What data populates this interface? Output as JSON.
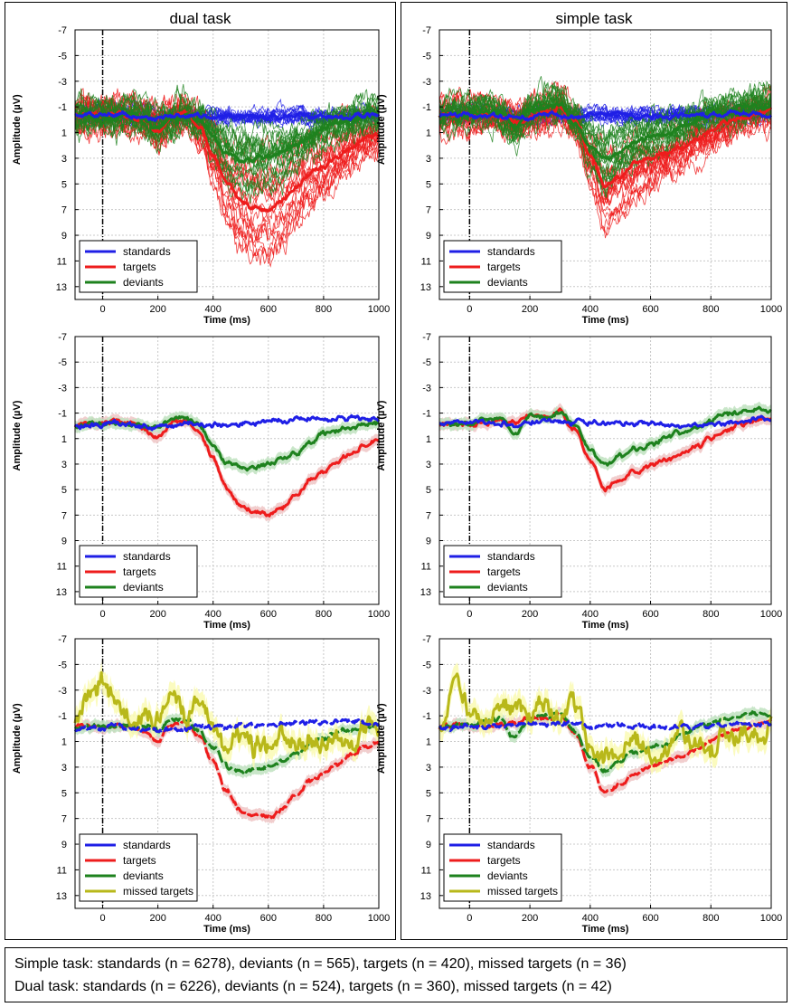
{
  "column_titles": [
    "dual task",
    "simple task"
  ],
  "caption": {
    "line1": "Simple task: standards (n = 6278), deviants (n = 565), targets (n = 420), missed targets (n = 36)",
    "line2": "Dual task: standards (n = 6226), deviants (n = 524), targets (n = 360), missed targets (n = 42)"
  },
  "colors": {
    "standards": "#1f1fe6",
    "targets": "#ee1c1c",
    "deviants": "#1e821e",
    "missed": "#b8b81a",
    "target_band": "#efc6c6",
    "deviant_band": "#bfe2bf",
    "missed_band": "#fafab4",
    "grid": "#c8c8c8"
  },
  "chart_data": [
    {
      "id": "dual-individual",
      "column": "dual task",
      "row": 1,
      "type": "line",
      "xlabel": "Time (ms)",
      "ylabel": "Amplitude (µV)",
      "xlim": [
        -100,
        1000
      ],
      "ylim": [
        -7,
        14
      ],
      "y_reversed": true,
      "xticks": [
        0,
        200,
        400,
        600,
        800,
        1000
      ],
      "yticks": [
        -7,
        -5,
        -3,
        -1,
        1,
        3,
        5,
        7,
        9,
        11,
        13
      ],
      "x": [
        -100,
        -50,
        0,
        50,
        100,
        150,
        200,
        250,
        300,
        350,
        400,
        450,
        500,
        550,
        600,
        650,
        700,
        750,
        800,
        850,
        900,
        950,
        1000
      ],
      "series": [
        {
          "name": "standards",
          "values": [
            -0.4,
            -0.6,
            -0.5,
            -0.5,
            -0.4,
            -0.3,
            -0.2,
            -0.2,
            -0.3,
            -0.3,
            -0.3,
            -0.3,
            -0.3,
            -0.3,
            -0.3,
            -0.3,
            -0.3,
            -0.3,
            -0.2,
            -0.3,
            -0.3,
            -0.3,
            -0.4
          ]
        },
        {
          "name": "targets",
          "values": [
            -0.3,
            -0.4,
            -0.2,
            -0.4,
            -0.3,
            0.0,
            0.8,
            -0.3,
            -0.4,
            0.6,
            2.8,
            5.0,
            6.3,
            6.9,
            6.9,
            6.3,
            5.3,
            4.3,
            3.6,
            2.9,
            2.1,
            1.4,
            1.2
          ]
        },
        {
          "name": "deviants",
          "values": [
            -0.3,
            -0.3,
            -0.4,
            -0.2,
            -0.4,
            -0.1,
            0.6,
            -0.1,
            -0.5,
            0.1,
            1.4,
            2.7,
            3.2,
            3.0,
            2.9,
            2.5,
            2.0,
            1.3,
            0.6,
            0.2,
            0.0,
            -0.2,
            -0.3
          ]
        }
      ],
      "legend": [
        "standards",
        "targets",
        "deviants"
      ],
      "legend_position": "lower-left"
    },
    {
      "id": "simple-individual",
      "column": "simple task",
      "row": 1,
      "type": "line",
      "xlabel": "Time (ms)",
      "ylabel": "Amplitude (µV)",
      "xlim": [
        -100,
        1000
      ],
      "ylim": [
        -7,
        14
      ],
      "y_reversed": true,
      "xticks": [
        0,
        200,
        400,
        600,
        800,
        1000
      ],
      "yticks": [
        -7,
        -5,
        -3,
        -1,
        1,
        3,
        5,
        7,
        9,
        11,
        13
      ],
      "x": [
        -100,
        -50,
        0,
        50,
        100,
        150,
        200,
        250,
        300,
        350,
        400,
        450,
        500,
        550,
        600,
        650,
        700,
        750,
        800,
        850,
        900,
        950,
        1000
      ],
      "series": [
        {
          "name": "standards",
          "values": [
            -0.3,
            -0.4,
            -0.4,
            -0.3,
            -0.3,
            -0.2,
            -0.2,
            -0.4,
            -0.3,
            -0.3,
            -0.3,
            -0.3,
            -0.3,
            -0.3,
            -0.3,
            -0.3,
            -0.4,
            -0.4,
            -0.4,
            -0.5,
            -0.5,
            -0.5,
            -0.4
          ]
        },
        {
          "name": "targets",
          "values": [
            -0.3,
            -0.4,
            -0.3,
            -0.4,
            -0.2,
            0.1,
            -0.2,
            -0.6,
            -1.0,
            0.2,
            2.8,
            5.1,
            4.4,
            3.4,
            3.1,
            2.6,
            2.1,
            1.5,
            0.9,
            0.3,
            -0.2,
            -0.5,
            -0.8
          ]
        },
        {
          "name": "deviants",
          "values": [
            -0.3,
            -0.4,
            -0.5,
            -0.6,
            -0.4,
            0.6,
            -0.8,
            -0.9,
            -1.1,
            0.3,
            2.0,
            3.1,
            2.3,
            1.7,
            1.4,
            1.2,
            0.6,
            0.2,
            -0.3,
            -0.6,
            -0.9,
            -1.1,
            -1.2
          ]
        }
      ],
      "legend": [
        "standards",
        "targets",
        "deviants"
      ],
      "legend_position": "lower-left"
    },
    {
      "id": "dual-average",
      "column": "dual task",
      "row": 2,
      "type": "line",
      "xlabel": "Time (ms)",
      "ylabel": "Amplitude (µV)",
      "xlim": [
        -100,
        1000
      ],
      "ylim": [
        -7,
        14
      ],
      "y_reversed": true,
      "xticks": [
        0,
        200,
        400,
        600,
        800,
        1000
      ],
      "yticks": [
        -7,
        -5,
        -3,
        -1,
        1,
        3,
        5,
        7,
        9,
        11,
        13
      ],
      "x": [
        -100,
        -50,
        0,
        50,
        100,
        150,
        200,
        250,
        300,
        350,
        400,
        450,
        500,
        550,
        600,
        650,
        700,
        750,
        800,
        850,
        900,
        950,
        1000
      ],
      "series": [
        {
          "name": "standards",
          "values": [
            0.0,
            -0.2,
            -0.1,
            -0.1,
            0.0,
            0.1,
            0.1,
            0.0,
            -0.1,
            -0.2,
            -0.2,
            -0.2,
            -0.3,
            -0.3,
            -0.3,
            -0.4,
            -0.5,
            -0.5,
            -0.6,
            -0.6,
            -0.6,
            -0.5,
            -0.5
          ]
        },
        {
          "name": "targets",
          "values": [
            -0.1,
            -0.3,
            -0.2,
            -0.3,
            -0.1,
            0.4,
            1.0,
            -0.2,
            -0.4,
            0.5,
            2.6,
            4.9,
            6.3,
            6.8,
            6.9,
            6.3,
            5.3,
            4.2,
            3.5,
            2.8,
            2.1,
            1.5,
            1.2
          ]
        },
        {
          "name": "deviants",
          "values": [
            -0.1,
            -0.2,
            -0.2,
            -0.2,
            -0.2,
            -0.1,
            0.2,
            -0.6,
            -0.7,
            0.1,
            1.6,
            3.1,
            3.4,
            3.2,
            3.0,
            2.6,
            2.0,
            1.3,
            0.7,
            0.3,
            0.1,
            -0.1,
            -0.2
          ]
        }
      ],
      "legend": [
        "standards",
        "targets",
        "deviants"
      ],
      "legend_position": "lower-left"
    },
    {
      "id": "simple-average",
      "column": "simple task",
      "row": 2,
      "type": "line",
      "xlabel": "Time (ms)",
      "ylabel": "Amplitude (µV)",
      "xlim": [
        -100,
        1000
      ],
      "ylim": [
        -7,
        14
      ],
      "y_reversed": true,
      "xticks": [
        0,
        200,
        400,
        600,
        800,
        1000
      ],
      "yticks": [
        -7,
        -5,
        -3,
        -1,
        1,
        3,
        5,
        7,
        9,
        11,
        13
      ],
      "x": [
        -100,
        -50,
        0,
        50,
        100,
        150,
        200,
        250,
        300,
        350,
        400,
        450,
        500,
        550,
        600,
        650,
        700,
        750,
        800,
        850,
        900,
        950,
        1000
      ],
      "series": [
        {
          "name": "standards",
          "values": [
            -0.1,
            -0.2,
            -0.3,
            -0.2,
            -0.2,
            -0.1,
            -0.3,
            -0.3,
            -0.4,
            -0.4,
            -0.3,
            -0.2,
            -0.2,
            -0.2,
            -0.2,
            -0.2,
            -0.1,
            -0.1,
            -0.1,
            -0.2,
            -0.3,
            -0.4,
            -0.4
          ]
        },
        {
          "name": "targets",
          "values": [
            -0.1,
            -0.2,
            -0.1,
            -0.2,
            -0.4,
            -0.2,
            -0.8,
            -0.7,
            -1.1,
            0.3,
            2.8,
            5.1,
            4.4,
            3.5,
            3.1,
            2.6,
            2.1,
            1.6,
            1.0,
            0.4,
            -0.1,
            -0.4,
            -0.7
          ]
        },
        {
          "name": "deviants",
          "values": [
            -0.1,
            -0.2,
            -0.3,
            -0.5,
            -0.6,
            0.7,
            -0.9,
            -0.9,
            -1.1,
            0.2,
            1.9,
            3.2,
            2.4,
            1.8,
            1.5,
            1.1,
            0.6,
            0.0,
            -0.4,
            -0.7,
            -1.0,
            -1.2,
            -1.2
          ]
        }
      ],
      "legend": [
        "standards",
        "targets",
        "deviants"
      ],
      "legend_position": "lower-left"
    },
    {
      "id": "dual-missed",
      "column": "dual task",
      "row": 3,
      "type": "line",
      "xlabel": "Time (ms)",
      "ylabel": "Amplitude (µV)",
      "xlim": [
        -100,
        1000
      ],
      "ylim": [
        -7,
        14
      ],
      "y_reversed": true,
      "xticks": [
        0,
        200,
        400,
        600,
        800,
        1000
      ],
      "yticks": [
        -7,
        -5,
        -3,
        -1,
        1,
        3,
        5,
        7,
        9,
        11,
        13
      ],
      "x": [
        -100,
        -50,
        0,
        50,
        100,
        150,
        200,
        250,
        300,
        350,
        400,
        450,
        500,
        550,
        600,
        650,
        700,
        750,
        800,
        850,
        900,
        950,
        1000
      ],
      "series": [
        {
          "name": "standards",
          "values": [
            0.0,
            -0.2,
            -0.1,
            -0.1,
            0.0,
            0.1,
            0.1,
            0.0,
            -0.1,
            -0.2,
            -0.2,
            -0.2,
            -0.3,
            -0.3,
            -0.3,
            -0.4,
            -0.5,
            -0.5,
            -0.6,
            -0.6,
            -0.6,
            -0.5,
            -0.5
          ]
        },
        {
          "name": "targets",
          "values": [
            -0.1,
            -0.3,
            -0.2,
            -0.3,
            -0.1,
            0.4,
            1.0,
            -0.2,
            -0.4,
            0.5,
            2.6,
            4.9,
            6.3,
            6.8,
            6.9,
            6.3,
            5.3,
            4.2,
            3.5,
            2.8,
            2.1,
            1.5,
            1.2
          ]
        },
        {
          "name": "deviants",
          "values": [
            -0.1,
            -0.2,
            -0.2,
            -0.2,
            -0.2,
            -0.1,
            0.2,
            -0.6,
            -0.7,
            0.1,
            1.6,
            3.1,
            3.4,
            3.2,
            3.0,
            2.6,
            2.0,
            1.3,
            0.7,
            0.3,
            0.1,
            -0.1,
            -0.2
          ]
        },
        {
          "name": "missed targets",
          "values": [
            -0.6,
            -2.0,
            -3.1,
            -2.0,
            -1.3,
            -1.8,
            -1.2,
            -2.6,
            -1.0,
            -1.4,
            0.5,
            1.3,
            0.8,
            1.5,
            1.9,
            0.9,
            1.6,
            0.7,
            1.0,
            0.4,
            0.9,
            -0.4,
            0.3
          ]
        }
      ],
      "legend": [
        "standards",
        "targets",
        "deviants",
        "missed targets"
      ],
      "legend_position": "lower-left"
    },
    {
      "id": "simple-missed",
      "column": "simple task",
      "row": 3,
      "type": "line",
      "xlabel": "Time (ms)",
      "ylabel": "Amplitude (µV)",
      "xlim": [
        -100,
        1000
      ],
      "ylim": [
        -7,
        14
      ],
      "y_reversed": true,
      "xticks": [
        0,
        200,
        400,
        600,
        800,
        1000
      ],
      "yticks": [
        -7,
        -5,
        -3,
        -1,
        1,
        3,
        5,
        7,
        9,
        11,
        13
      ],
      "x": [
        -100,
        -50,
        0,
        50,
        100,
        150,
        200,
        250,
        300,
        350,
        400,
        450,
        500,
        550,
        600,
        650,
        700,
        750,
        800,
        850,
        900,
        950,
        1000
      ],
      "series": [
        {
          "name": "standards",
          "values": [
            -0.1,
            -0.2,
            -0.3,
            -0.2,
            -0.2,
            -0.1,
            -0.3,
            -0.3,
            -0.4,
            -0.4,
            -0.3,
            -0.2,
            -0.2,
            -0.2,
            -0.2,
            -0.2,
            -0.1,
            -0.1,
            -0.1,
            -0.2,
            -0.3,
            -0.4,
            -0.4
          ]
        },
        {
          "name": "targets",
          "values": [
            -0.1,
            -0.2,
            -0.1,
            -0.2,
            -0.4,
            -0.2,
            -0.8,
            -0.7,
            -1.1,
            0.3,
            2.8,
            5.1,
            4.4,
            3.5,
            3.1,
            2.6,
            2.1,
            1.6,
            1.0,
            0.4,
            -0.1,
            -0.4,
            -0.7
          ]
        },
        {
          "name": "deviants",
          "values": [
            -0.1,
            -0.2,
            -0.3,
            -0.5,
            -0.6,
            0.7,
            -0.9,
            -0.9,
            -1.1,
            0.2,
            1.9,
            3.2,
            2.4,
            1.8,
            1.5,
            1.1,
            0.6,
            0.0,
            -0.4,
            -0.7,
            -1.0,
            -1.2,
            -1.2
          ]
        },
        {
          "name": "missed targets",
          "values": [
            -0.6,
            -3.1,
            -1.2,
            -0.5,
            -1.3,
            -1.6,
            -0.5,
            -1.9,
            -0.8,
            -2.3,
            1.2,
            2.0,
            1.5,
            0.4,
            2.3,
            1.6,
            1.0,
            1.9,
            1.3,
            0.4,
            0.8,
            0.2,
            -0.4
          ]
        }
      ],
      "legend": [
        "standards",
        "targets",
        "deviants",
        "missed targets"
      ],
      "legend_position": "lower-left"
    }
  ]
}
